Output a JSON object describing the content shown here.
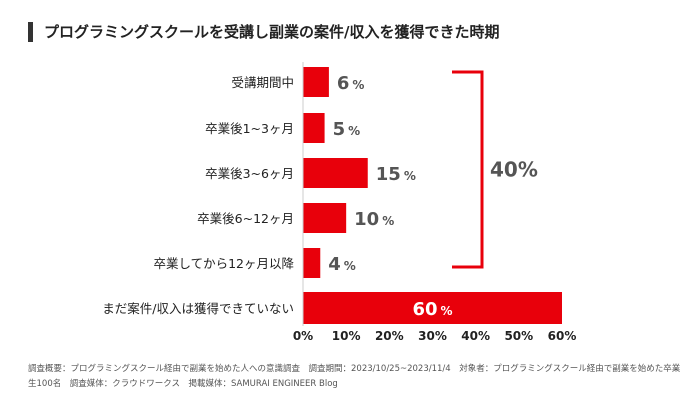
{
  "title": "プログラミングスクールを受講し副業の案件/収入を獲得できた時期",
  "colors": {
    "bar": "#e8000b",
    "value_text": "#555555",
    "value_text_inside": "#ffffff",
    "bracket": "#e8000b",
    "label_text": "#222222"
  },
  "chart_data": {
    "type": "bar",
    "orientation": "horizontal",
    "title": "プログラミングスクールを受講し副業の案件/収入を獲得できた時期",
    "categories": [
      "受講期間中",
      "卒業後1~3ヶ月",
      "卒業後3~6ヶ月",
      "卒業後6~12ヶ月",
      "卒業してから12ヶ月以降",
      "まだ案件/収入は獲得できていない"
    ],
    "values": [
      6,
      5,
      15,
      10,
      4,
      60
    ],
    "unit": "%",
    "xlim": [
      0,
      60
    ],
    "xticks": [
      "0%",
      "10%",
      "20%",
      "30%",
      "40%",
      "50%",
      "60%"
    ],
    "grid": false,
    "legend": "none",
    "annotation": {
      "type": "bracket",
      "covers_categories": [
        0,
        1,
        2,
        3,
        4
      ],
      "label": "40%"
    }
  },
  "footnote": "調査概要：プログラミングスクール経由で副業を始めた人への意識調査　調査期間：2023/10/25~2023/11/4　対象者：プログラミングスクール経由で副業を始めた卒業生100名　調査媒体：クラウドワークス　掲載媒体：SAMURAI ENGINEER Blog"
}
